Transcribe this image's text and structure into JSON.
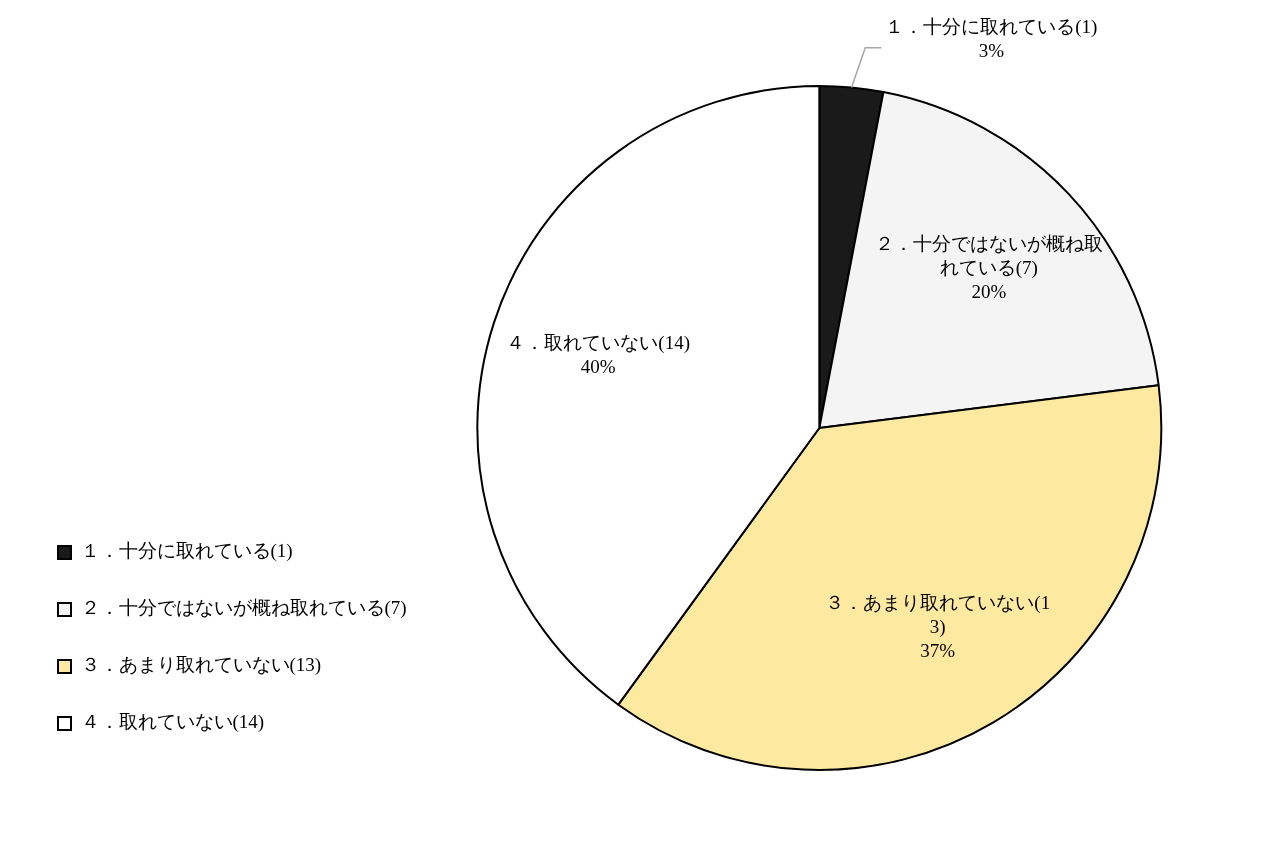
{
  "chart_data": {
    "type": "pie",
    "categories": [
      "１．十分に取れている(1)",
      "２．十分ではないが概ね取れている(7)",
      "３．あまり取れていない(13)",
      "４．取れていない(14)"
    ],
    "values": [
      3,
      20,
      37,
      40
    ],
    "value_labels": [
      "3%",
      "20%",
      "37%",
      "40%"
    ],
    "colors": [
      "#1a1a1a",
      "#f4f4f4",
      "#fee9a0",
      "#ffffff"
    ],
    "legend": "bottom left"
  }
}
